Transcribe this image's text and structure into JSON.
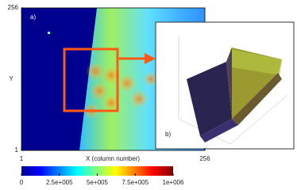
{
  "chart_data": {
    "type": "heatmap",
    "panel_label": "a)",
    "inset_label": "b)",
    "xlabel": "X (column number)",
    "ylabel": "Y",
    "xlim": [
      1,
      256
    ],
    "xticks": [
      1,
      256
    ],
    "ylim": [
      1,
      256
    ],
    "yticks": [
      1,
      256
    ],
    "clim": [
      0,
      1000000
    ],
    "cticks": [
      0,
      {
        "value": 250000,
        "label": "2.5e+005"
      },
      {
        "value": 500000,
        "label": "5e+005"
      },
      {
        "value": 750000,
        "label": "7.5e+005"
      },
      {
        "value": 1000000,
        "label": "1e+006"
      }
    ],
    "colormap": "jet"
  }
}
